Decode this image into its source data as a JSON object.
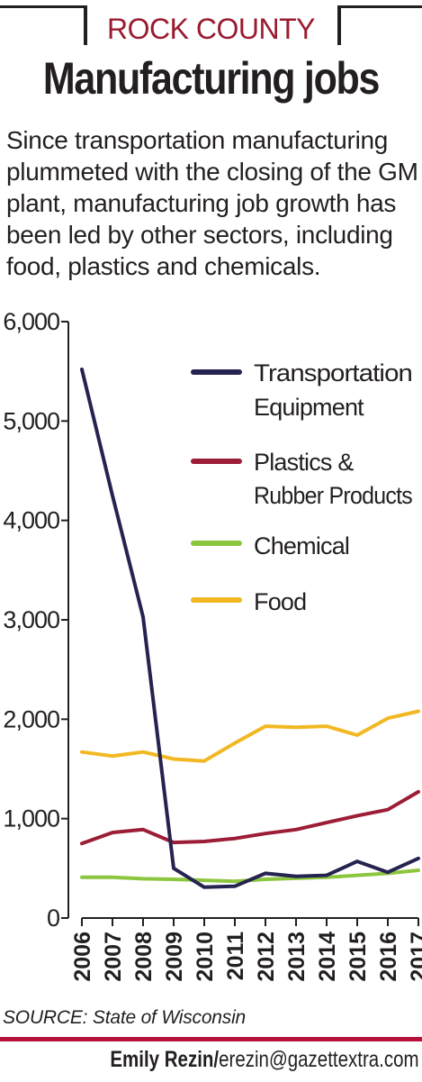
{
  "kicker": "ROCK COUNTY",
  "headline": "Manufacturing jobs",
  "dek": "Since transportation manufacturing plummeted with the closing of the GM plant, manufacturing job growth has been led by other sectors, including food, plastics and chemicals.",
  "source": "SOURCE: State of Wisconsin",
  "credit": {
    "name": "Emily Rezin/",
    "email": "erezin@gazettextra.com"
  },
  "colors": {
    "kicker": "#9a1b2f",
    "rule": "#b5123a",
    "transportation": "#25234f",
    "plastics": "#9c1d36",
    "chemical": "#8cc63f",
    "food": "#f2b823"
  },
  "chart_data": {
    "type": "line",
    "title": "",
    "xlabel": "",
    "ylabel": "",
    "ylim": [
      0,
      6000
    ],
    "yticks": [
      0,
      1000,
      2000,
      3000,
      4000,
      5000,
      6000
    ],
    "yticklabels": [
      "0",
      "1,000",
      "2,000",
      "3,000",
      "4,000",
      "5,000",
      "6,000"
    ],
    "x": [
      "2006",
      "2007",
      "2008",
      "2009",
      "2010",
      "2011",
      "2012",
      "2013",
      "2014",
      "2015",
      "2016",
      "2017"
    ],
    "grid": false,
    "legend": "top-right",
    "series": [
      {
        "name": "Transportation Equipment",
        "legend_lines": [
          "Transportation",
          "Equipment"
        ],
        "color": "#25234f",
        "values": [
          5520,
          4250,
          3030,
          500,
          310,
          320,
          450,
          420,
          430,
          570,
          460,
          600
        ]
      },
      {
        "name": "Plastics & Rubber Products",
        "legend_lines": [
          "Plastics &",
          "Rubber Products"
        ],
        "color": "#9c1d36",
        "values": [
          750,
          860,
          890,
          760,
          770,
          800,
          850,
          890,
          960,
          1030,
          1090,
          1270
        ]
      },
      {
        "name": "Chemical",
        "legend_lines": [
          "Chemical"
        ],
        "color": "#8cc63f",
        "values": [
          410,
          410,
          395,
          390,
          380,
          370,
          390,
          400,
          410,
          430,
          450,
          480
        ]
      },
      {
        "name": "Food",
        "legend_lines": [
          "Food"
        ],
        "color": "#f2b823",
        "values": [
          1670,
          1630,
          1670,
          1600,
          1580,
          1760,
          1930,
          1920,
          1930,
          1840,
          2010,
          2080
        ]
      }
    ]
  }
}
